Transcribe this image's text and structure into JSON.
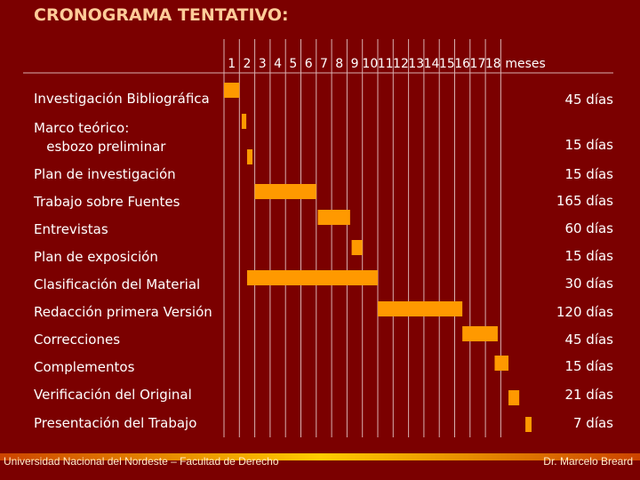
{
  "title": "CRONOGRAMA TENTATIVO:",
  "footer": {
    "left": "Universidad Nacional del Nordeste – Facultad de Derecho",
    "right": "Dr. Marcelo Breard"
  },
  "colors": {
    "background": "#7b0000",
    "bar": "#ff9900",
    "title": "#ffcc99",
    "grid": "#d8b0b0"
  },
  "chart_data": {
    "type": "gantt",
    "x_unit_label": "meses",
    "x_ticks": [
      "1",
      "2",
      "3",
      "4",
      "5",
      "6",
      "7",
      "8",
      "9",
      "10",
      "11",
      "12",
      "13",
      "14",
      "15",
      "16",
      "17",
      "18"
    ],
    "tasks": [
      {
        "name": "Investigación Bibliográfica",
        "start_month": 1.0,
        "end_month": 2.0,
        "duration": "45 días"
      },
      {
        "name": "Marco teórico:\n   esbozo preliminar",
        "start_month": 2.15,
        "end_month": 2.45,
        "duration": "15 días"
      },
      {
        "name": "Plan de investigación",
        "start_month": 2.5,
        "end_month": 2.85,
        "duration": "15 días"
      },
      {
        "name": "Trabajo sobre Fuentes",
        "start_month": 3.0,
        "end_month": 7.0,
        "duration": "165 días"
      },
      {
        "name": "Entrevistas",
        "start_month": 7.1,
        "end_month": 9.2,
        "duration": "60 días"
      },
      {
        "name": "Plan de exposición",
        "start_month": 9.3,
        "end_month": 10.0,
        "duration": "15 días"
      },
      {
        "name": "Clasificación del Material",
        "start_month": 2.5,
        "end_month": 11.0,
        "duration": "30 días"
      },
      {
        "name": "Redacción primera Versión",
        "start_month": 11.0,
        "end_month": 16.5,
        "duration": "120 días"
      },
      {
        "name": "Correcciones",
        "start_month": 16.5,
        "end_month": 18.8,
        "duration": "45 días"
      },
      {
        "name": "Complementos",
        "start_month": 18.6,
        "end_month": 19.5,
        "duration": "15 días"
      },
      {
        "name": "Verificación del Original",
        "start_month": 19.5,
        "end_month": 20.2,
        "duration": "21 días"
      },
      {
        "name": "Presentación del Trabajo",
        "start_month": 20.6,
        "end_month": 21.0,
        "duration": "7 días"
      }
    ]
  }
}
